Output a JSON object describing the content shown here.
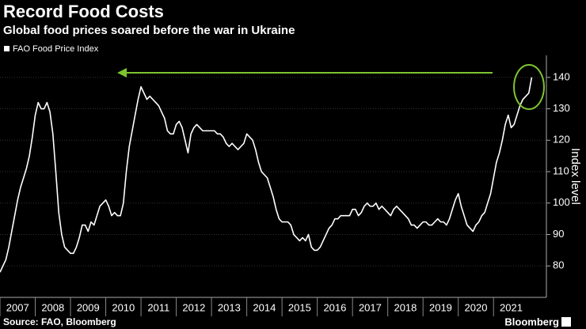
{
  "chart_data": {
    "type": "line",
    "title": "Record Food Costs",
    "subtitle": "Global food prices soared before the war in Ukraine",
    "y_label": "Index level",
    "source": "Source: FAO, Bloomberg",
    "brand": "Bloomberg",
    "legend": "top-left",
    "grid": true,
    "xlim": [
      2007,
      2022.5
    ],
    "xticks": [
      {
        "value": 2007,
        "label": "2007"
      },
      {
        "value": 2008,
        "label": "2008"
      },
      {
        "value": 2009,
        "label": "2009"
      },
      {
        "value": 2010,
        "label": "2010"
      },
      {
        "value": 2011,
        "label": "2011"
      },
      {
        "value": 2012,
        "label": "2012"
      },
      {
        "value": 2013,
        "label": "2013"
      },
      {
        "value": 2014,
        "label": "2014"
      },
      {
        "value": 2015,
        "label": "2015"
      },
      {
        "value": 2016,
        "label": "2016"
      },
      {
        "value": 2017,
        "label": "2017"
      },
      {
        "value": 2018,
        "label": "2018"
      },
      {
        "value": 2019,
        "label": "2019"
      },
      {
        "value": 2020,
        "label": "2020"
      },
      {
        "value": 2021,
        "label": "2021"
      }
    ],
    "ylim": [
      70,
      147
    ],
    "yticks": [
      80,
      90,
      100,
      110,
      120,
      130,
      140
    ],
    "x": [
      2007,
      2007.083,
      2007.167,
      2007.25,
      2007.333,
      2007.417,
      2007.5,
      2007.583,
      2007.667,
      2007.75,
      2007.833,
      2007.917,
      2008,
      2008.083,
      2008.167,
      2008.25,
      2008.333,
      2008.417,
      2008.5,
      2008.583,
      2008.667,
      2008.75,
      2008.833,
      2008.917,
      2009,
      2009.083,
      2009.167,
      2009.25,
      2009.333,
      2009.417,
      2009.5,
      2009.583,
      2009.667,
      2009.75,
      2009.833,
      2009.917,
      2010,
      2010.083,
      2010.167,
      2010.25,
      2010.333,
      2010.417,
      2010.5,
      2010.583,
      2010.667,
      2010.75,
      2010.833,
      2010.917,
      2011,
      2011.083,
      2011.167,
      2011.25,
      2011.333,
      2011.417,
      2011.5,
      2011.583,
      2011.667,
      2011.75,
      2011.833,
      2011.917,
      2012,
      2012.083,
      2012.167,
      2012.25,
      2012.333,
      2012.417,
      2012.5,
      2012.583,
      2012.667,
      2012.75,
      2012.833,
      2012.917,
      2013,
      2013.083,
      2013.167,
      2013.25,
      2013.333,
      2013.417,
      2013.5,
      2013.583,
      2013.667,
      2013.75,
      2013.833,
      2013.917,
      2014,
      2014.083,
      2014.167,
      2014.25,
      2014.333,
      2014.417,
      2014.5,
      2014.583,
      2014.667,
      2014.75,
      2014.833,
      2014.917,
      2015,
      2015.083,
      2015.167,
      2015.25,
      2015.333,
      2015.417,
      2015.5,
      2015.583,
      2015.667,
      2015.75,
      2015.833,
      2015.917,
      2016,
      2016.083,
      2016.167,
      2016.25,
      2016.333,
      2016.417,
      2016.5,
      2016.583,
      2016.667,
      2016.75,
      2016.833,
      2016.917,
      2017,
      2017.083,
      2017.167,
      2017.25,
      2017.333,
      2017.417,
      2017.5,
      2017.583,
      2017.667,
      2017.75,
      2017.833,
      2017.917,
      2018,
      2018.083,
      2018.167,
      2018.25,
      2018.333,
      2018.417,
      2018.5,
      2018.583,
      2018.667,
      2018.75,
      2018.833,
      2018.917,
      2019,
      2019.083,
      2019.167,
      2019.25,
      2019.333,
      2019.417,
      2019.5,
      2019.583,
      2019.667,
      2019.75,
      2019.833,
      2019.917,
      2020,
      2020.083,
      2020.167,
      2020.25,
      2020.333,
      2020.417,
      2020.5,
      2020.583,
      2020.667,
      2020.75,
      2020.833,
      2020.917,
      2021,
      2021.083,
      2021.167,
      2021.25,
      2021.333,
      2021.417,
      2021.5,
      2021.583,
      2021.667,
      2021.75,
      2021.833,
      2021.917,
      2022,
      2022.083
    ],
    "series": [
      {
        "name": "FAO Food Price Index",
        "color": "#ffffff",
        "values": [
          78,
          80,
          82,
          86,
          91,
          96,
          101,
          105,
          108,
          111,
          115,
          121,
          128,
          132,
          130,
          130,
          132,
          129,
          122,
          110,
          97,
          90,
          86,
          85,
          84,
          84,
          86,
          89,
          93,
          93,
          91,
          94,
          93,
          96,
          99,
          100,
          101,
          99,
          96,
          97,
          96,
          96,
          100,
          110,
          118,
          123,
          128,
          133,
          137,
          135,
          133,
          134,
          133,
          132,
          131,
          129,
          127,
          123,
          122,
          122,
          125,
          126,
          124,
          120,
          116,
          122,
          124,
          125,
          124,
          123,
          123,
          123,
          123,
          123,
          122,
          122,
          121,
          119,
          118,
          119,
          118,
          117,
          118,
          119,
          122,
          121,
          120,
          117,
          113,
          110,
          109,
          108,
          105,
          102,
          98,
          95,
          94,
          94,
          94,
          93,
          90,
          89,
          88,
          89,
          88,
          90,
          86,
          85,
          85,
          86,
          88,
          90,
          92,
          93,
          95,
          95,
          96,
          96,
          96,
          96,
          98,
          98,
          96,
          97,
          99,
          100,
          99,
          99,
          100,
          98,
          99,
          98,
          97,
          96,
          98,
          99,
          98,
          97,
          96,
          95,
          93,
          93,
          92,
          93,
          94,
          94,
          93,
          93,
          94,
          95,
          94,
          94,
          93,
          95,
          98,
          101,
          103,
          99,
          96,
          93,
          92,
          91,
          93,
          94,
          96,
          97,
          100,
          103,
          108,
          113,
          116,
          120,
          125,
          128,
          124,
          125,
          128,
          131,
          133,
          134,
          135,
          140
        ]
      }
    ]
  }
}
